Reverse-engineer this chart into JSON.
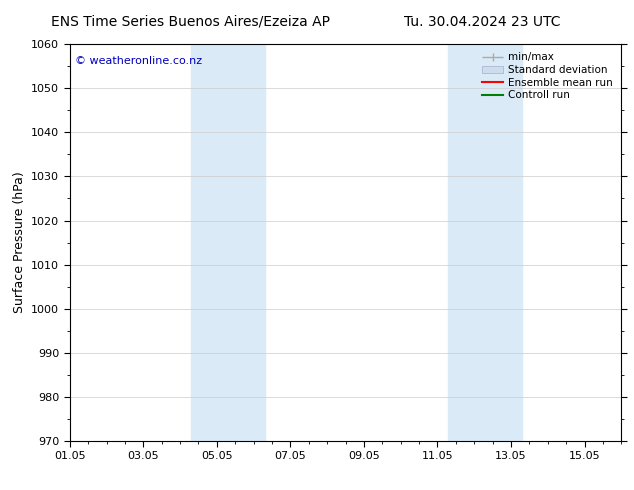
{
  "title_left": "ENS Time Series Buenos Aires/Ezeiza AP",
  "title_right": "Tu. 30.04.2024 23 UTC",
  "ylabel": "Surface Pressure (hPa)",
  "xlim": [
    0,
    15
  ],
  "ylim": [
    970,
    1060
  ],
  "yticks": [
    970,
    980,
    990,
    1000,
    1010,
    1020,
    1030,
    1040,
    1050,
    1060
  ],
  "xtick_labels": [
    "01.05",
    "03.05",
    "05.05",
    "07.05",
    "09.05",
    "11.05",
    "13.05",
    "15.05"
  ],
  "xtick_positions": [
    0,
    2,
    4,
    6,
    8,
    10,
    12,
    14
  ],
  "shaded_bands": [
    {
      "x_start": 3.3,
      "x_end": 5.3
    },
    {
      "x_start": 10.3,
      "x_end": 12.3
    }
  ],
  "shaded_color": "#daeaf7",
  "watermark_text": "© weatheronline.co.nz",
  "watermark_color": "#0000bb",
  "bg_color": "#ffffff",
  "plot_bg_color": "#ffffff",
  "grid_color": "#cccccc",
  "title_fontsize": 10,
  "tick_fontsize": 8,
  "ylabel_fontsize": 9
}
